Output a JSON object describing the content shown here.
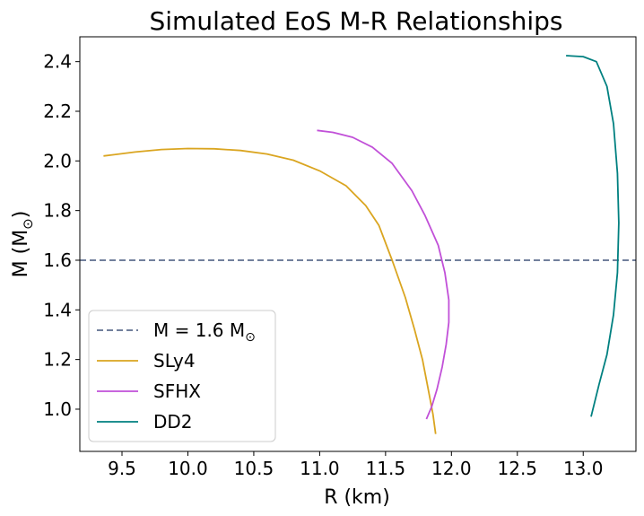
{
  "chart_data": {
    "type": "line",
    "title": "Simulated EoS M-R Relationships",
    "xlabel": "R (km)",
    "ylabel_main": "M (M",
    "ylabel_sub": "⊙",
    "ylabel_close": ")",
    "xlim": [
      9.18,
      13.4
    ],
    "ylim": [
      0.83,
      2.5
    ],
    "xticks": [
      "9.5",
      "10.0",
      "10.5",
      "11.0",
      "11.5",
      "12.0",
      "12.5",
      "13.0"
    ],
    "yticks": [
      "1.0",
      "1.2",
      "1.4",
      "1.6",
      "1.8",
      "2.0",
      "2.2",
      "2.4"
    ],
    "grid": false,
    "legend_position": "lower-left",
    "reference_line": {
      "y": 1.6,
      "style": "dashed",
      "color": "#5f6f8f",
      "label_main": "M = 1.6 M",
      "label_sub": "⊙"
    },
    "series": [
      {
        "name": "SLy4",
        "color": "#daa520",
        "points": [
          [
            9.36,
            2.02
          ],
          [
            9.6,
            2.036
          ],
          [
            9.8,
            2.046
          ],
          [
            10.0,
            2.05
          ],
          [
            10.2,
            2.049
          ],
          [
            10.4,
            2.042
          ],
          [
            10.6,
            2.028
          ],
          [
            10.8,
            2.003
          ],
          [
            11.0,
            1.96
          ],
          [
            11.2,
            1.9
          ],
          [
            11.35,
            1.82
          ],
          [
            11.45,
            1.74
          ],
          [
            11.55,
            1.6
          ],
          [
            11.65,
            1.45
          ],
          [
            11.72,
            1.32
          ],
          [
            11.78,
            1.2
          ],
          [
            11.82,
            1.09
          ],
          [
            11.86,
            0.98
          ],
          [
            11.88,
            0.9
          ]
        ]
      },
      {
        "name": "SFHX",
        "color": "#c150d8",
        "points": [
          [
            10.98,
            2.123
          ],
          [
            11.1,
            2.115
          ],
          [
            11.25,
            2.095
          ],
          [
            11.4,
            2.055
          ],
          [
            11.55,
            1.99
          ],
          [
            11.7,
            1.88
          ],
          [
            11.8,
            1.78
          ],
          [
            11.9,
            1.66
          ],
          [
            11.95,
            1.55
          ],
          [
            11.98,
            1.44
          ],
          [
            11.98,
            1.35
          ],
          [
            11.96,
            1.26
          ],
          [
            11.93,
            1.17
          ],
          [
            11.89,
            1.08
          ],
          [
            11.85,
            1.01
          ],
          [
            11.81,
            0.96
          ]
        ]
      },
      {
        "name": "DD2",
        "color": "#008080",
        "points": [
          [
            12.87,
            2.424
          ],
          [
            13.0,
            2.42
          ],
          [
            12.75,
            2.41
          ],
          [
            12.87,
            2.424
          ]
        ]
      }
    ]
  }
}
